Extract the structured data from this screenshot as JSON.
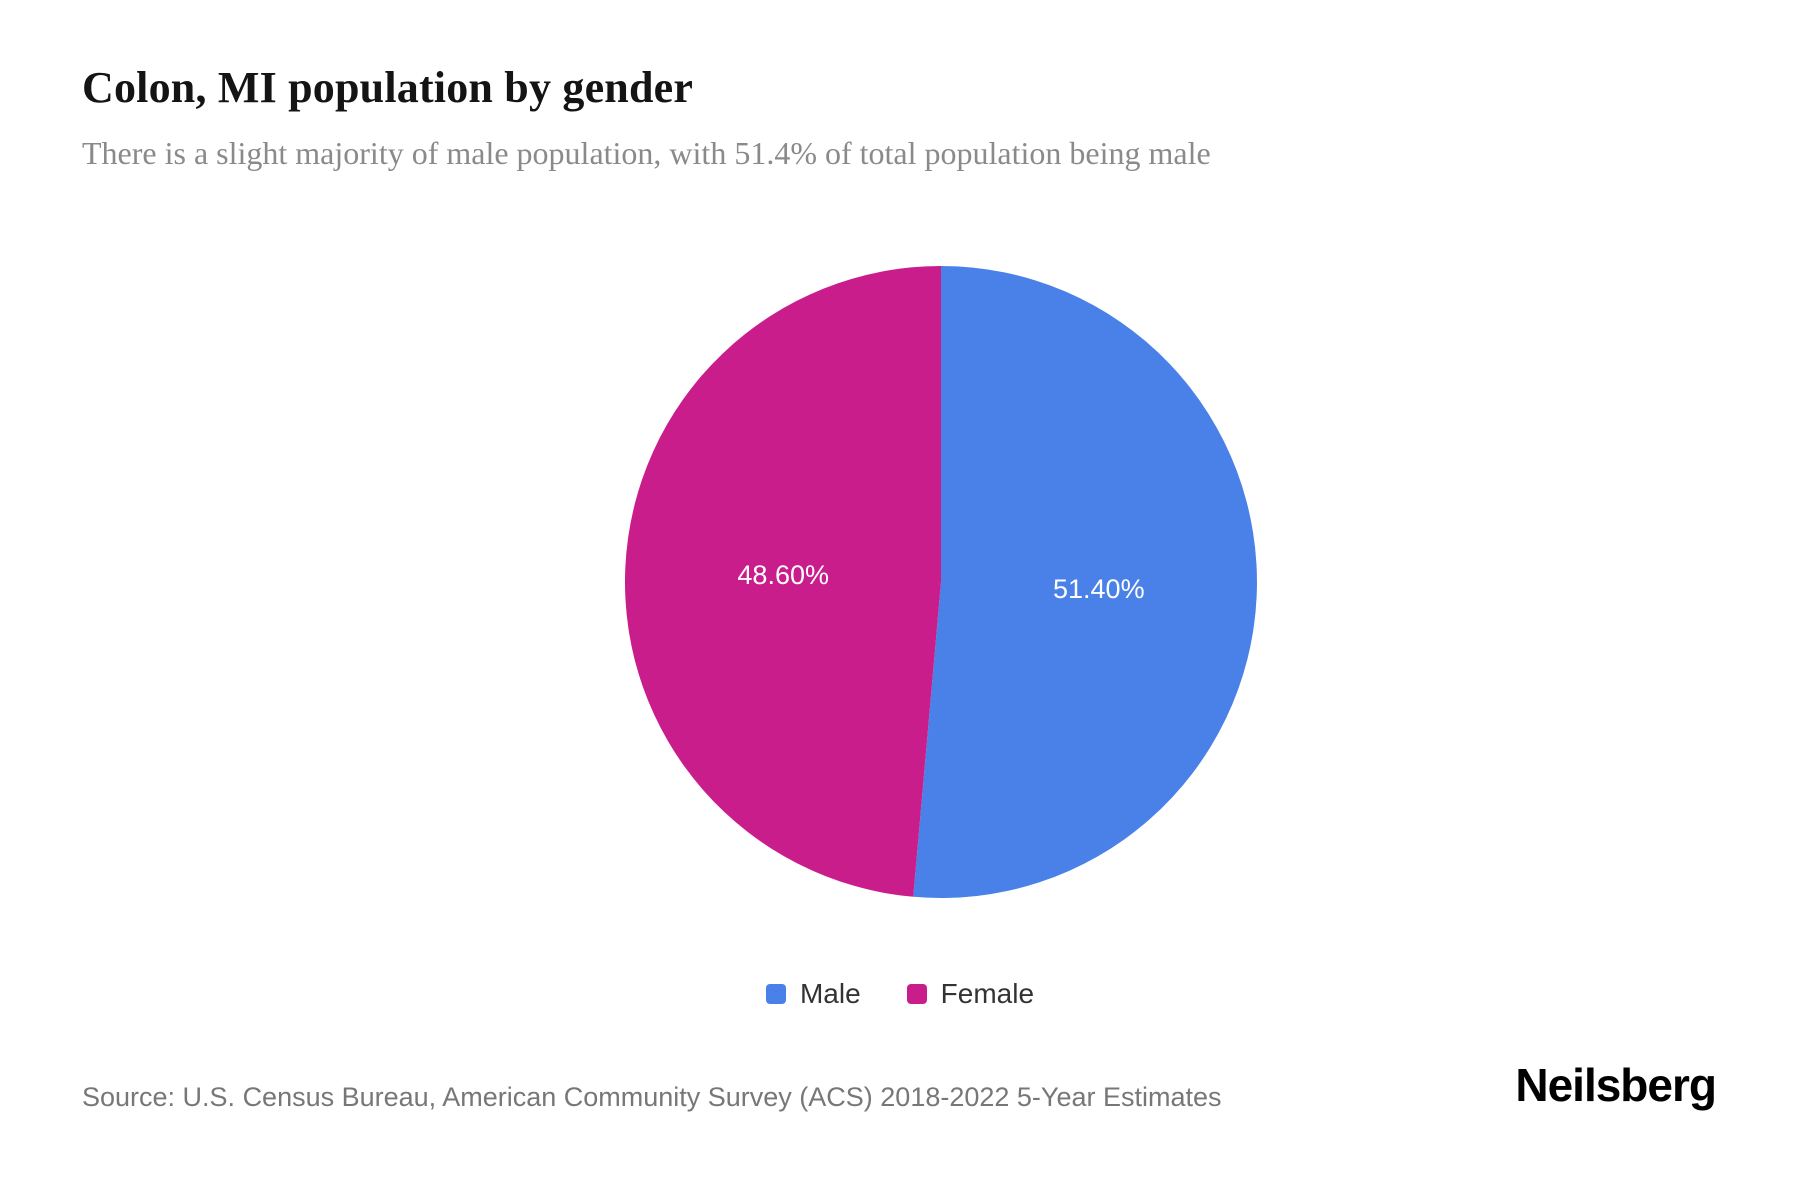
{
  "page": {
    "title": "Colon, MI population by gender",
    "subtitle": "There is a slight majority of male population, with 51.4% of total population being male",
    "source": "Source: U.S. Census Bureau, American Community Survey (ACS) 2018-2022 5-Year Estimates",
    "brand": "Neilsberg"
  },
  "chart_data": {
    "type": "pie",
    "title": "Colon, MI population by gender",
    "subtitle": "There is a slight majority of male population, with 51.4% of total population being male",
    "series": [
      {
        "name": "Male",
        "value": 51.4,
        "label": "51.40%",
        "color": "#4a81e8"
      },
      {
        "name": "Female",
        "value": 48.6,
        "label": "48.60%",
        "color": "#ca1d8c"
      }
    ],
    "start_angle_deg": 0,
    "direction": "clockwise",
    "label_position": "inside",
    "label_color": "#ffffff",
    "legend_position": "bottom",
    "legend_entries": [
      "Male",
      "Female"
    ]
  }
}
